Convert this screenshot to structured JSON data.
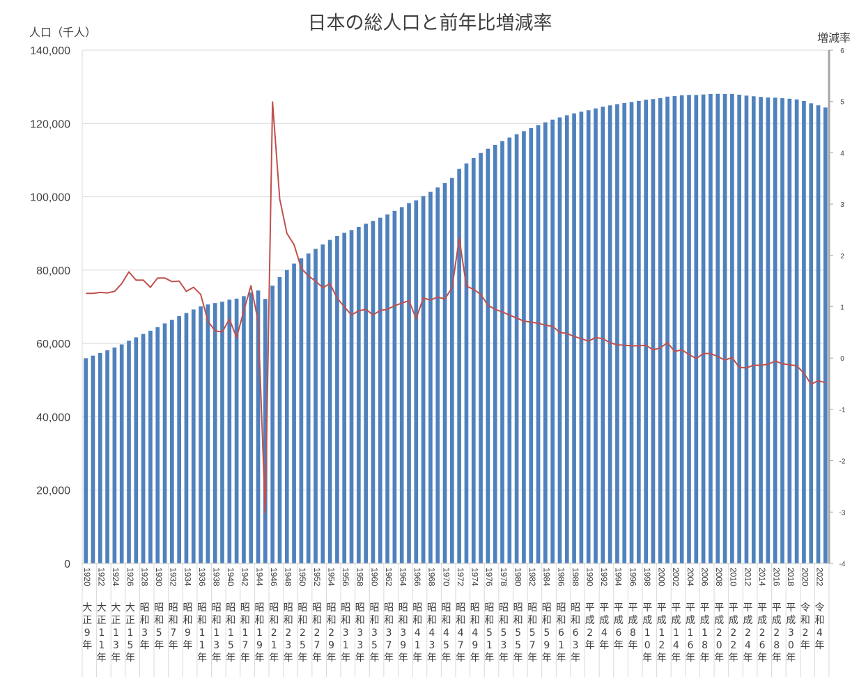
{
  "chart_data": {
    "type": "bar",
    "title": "日本の総人口と前年比増減率",
    "ylabel": "人口（千人）",
    "y2label": "増減率",
    "ylim": [
      0,
      140000
    ],
    "y_ticks": [
      "140,000",
      "120,000",
      "100,000",
      "80,000",
      "60,000",
      "40,000",
      "20,000",
      "0"
    ],
    "y2lim": [
      -4,
      6
    ],
    "y2_ticks": [
      "6",
      "5",
      "4",
      "3",
      "2",
      "1",
      "0",
      "-1",
      "-2",
      "-3",
      "-4"
    ],
    "grid": true,
    "colors": {
      "bars": "#4f81bd",
      "line": "#c0504d",
      "grid": "#d9d9d9",
      "right_axis": "#a6a6a6"
    },
    "x": [
      1920,
      1921,
      1922,
      1923,
      1924,
      1925,
      1926,
      1927,
      1928,
      1929,
      1930,
      1931,
      1932,
      1933,
      1934,
      1935,
      1936,
      1937,
      1938,
      1939,
      1940,
      1941,
      1942,
      1943,
      1944,
      1945,
      1946,
      1947,
      1948,
      1949,
      1950,
      1951,
      1952,
      1953,
      1954,
      1955,
      1956,
      1957,
      1958,
      1959,
      1960,
      1961,
      1962,
      1963,
      1964,
      1965,
      1966,
      1967,
      1968,
      1969,
      1970,
      1971,
      1972,
      1973,
      1974,
      1975,
      1976,
      1977,
      1978,
      1979,
      1980,
      1981,
      1982,
      1983,
      1984,
      1985,
      1986,
      1987,
      1988,
      1989,
      1990,
      1991,
      1992,
      1993,
      1994,
      1995,
      1996,
      1997,
      1998,
      1999,
      2000,
      2001,
      2002,
      2003,
      2004,
      2005,
      2006,
      2007,
      2008,
      2009,
      2010,
      2011,
      2012,
      2013,
      2014,
      2015,
      2016,
      2017,
      2018,
      2019,
      2020,
      2021,
      2022,
      2023
    ],
    "x_tick_labels": [
      "1920",
      "1922",
      "1924",
      "1926",
      "1928",
      "1930",
      "1932",
      "1934",
      "1936",
      "1938",
      "1940",
      "1942",
      "1944",
      "1946",
      "1948",
      "1950",
      "1952",
      "1954",
      "1956",
      "1958",
      "1960",
      "1962",
      "1964",
      "1966",
      "1968",
      "1970",
      "1972",
      "1974",
      "1976",
      "1978",
      "1980",
      "1982",
      "1984",
      "1986",
      "1988",
      "1990",
      "1992",
      "1994",
      "1996",
      "1998",
      "2000",
      "2002",
      "2004",
      "2006",
      "2008",
      "2010",
      "2012",
      "2014",
      "2016",
      "2018",
      "2020",
      "2022"
    ],
    "era_labels": [
      "大正9年",
      "大正11年",
      "大正13年",
      "大正15年",
      "昭和3年",
      "昭和5年",
      "昭和7年",
      "昭和9年",
      "昭和11年",
      "昭和13年",
      "昭和15年",
      "昭和17年",
      "昭和19年",
      "昭和21年",
      "昭和23年",
      "昭和25年",
      "昭和27年",
      "昭和29年",
      "昭和31年",
      "昭和33年",
      "昭和35年",
      "昭和37年",
      "昭和39年",
      "昭和41年",
      "昭和43年",
      "昭和45年",
      "昭和47年",
      "昭和49年",
      "昭和51年",
      "昭和53年",
      "昭和55年",
      "昭和57年",
      "昭和59年",
      "昭和61年",
      "昭和63年",
      "平成2年",
      "平成4年",
      "平成6年",
      "平成8年",
      "平成10年",
      "平成12年",
      "平成14年",
      "平成16年",
      "平成18年",
      "平成20年",
      "平成22年",
      "平成24年",
      "平成26年",
      "平成28年",
      "平成30年",
      "令和2年",
      "令和4年"
    ],
    "series": [
      {
        "axis": "left",
        "type": "bar",
        "values": [
          55963,
          56666,
          57390,
          58119,
          58876,
          59737,
          60741,
          61659,
          62595,
          63461,
          64450,
          65457,
          66434,
          67432,
          68309,
          69254,
          70114,
          70630,
          71013,
          71380,
          71933,
          72218,
          72880,
          73903,
          74433,
          72147,
          75750,
          78101,
          80002,
          81773,
          83200,
          84541,
          85808,
          86981,
          88239,
          89276,
          90172,
          90928,
          91767,
          92641,
          93419,
          94287,
          95181,
          96156,
          97182,
          98275,
          99036,
          100196,
          101331,
          102536,
          103720,
          105145,
          107595,
          109104,
          110573,
          111940,
          113094,
          114165,
          115190,
          116155,
          117060,
          117902,
          118728,
          119536,
          120305,
          121049,
          121660,
          122239,
          122745,
          123205,
          123611,
          124101,
          124567,
          124938,
          125265,
          125570,
          125859,
          126157,
          126472,
          126667,
          126926,
          127316,
          127486,
          127694,
          127787,
          127768,
          127901,
          128033,
          128084,
          128032,
          128057,
          127834,
          127593,
          127414,
          127237,
          127095,
          127042,
          126919,
          126749,
          126555,
          126146,
          125502,
          124947,
          124352
        ]
      },
      {
        "axis": "right",
        "type": "line",
        "values": [
          1.26,
          1.26,
          1.28,
          1.27,
          1.3,
          1.45,
          1.68,
          1.52,
          1.52,
          1.38,
          1.56,
          1.56,
          1.49,
          1.5,
          1.3,
          1.38,
          1.24,
          0.72,
          0.53,
          0.51,
          0.76,
          0.4,
          0.92,
          1.41,
          0.72,
          -3.02,
          4.99,
          3.1,
          2.43,
          2.21,
          1.75,
          1.6,
          1.5,
          1.37,
          1.45,
          1.17,
          1.0,
          0.84,
          0.92,
          0.95,
          0.84,
          0.93,
          0.95,
          1.02,
          1.07,
          1.12,
          0.77,
          1.17,
          1.13,
          1.19,
          1.15,
          1.37,
          2.33,
          1.4,
          1.34,
          1.24,
          1.03,
          0.95,
          0.9,
          0.84,
          0.78,
          0.72,
          0.7,
          0.68,
          0.64,
          0.62,
          0.5,
          0.48,
          0.42,
          0.38,
          0.33,
          0.4,
          0.38,
          0.3,
          0.26,
          0.25,
          0.24,
          0.24,
          0.25,
          0.16,
          0.2,
          0.3,
          0.13,
          0.16,
          0.07,
          -0.01,
          0.09,
          0.09,
          0.03,
          -0.04,
          0.01,
          -0.18,
          -0.19,
          -0.14,
          -0.14,
          -0.12,
          -0.06,
          -0.11,
          -0.13,
          -0.15,
          -0.29,
          -0.51,
          -0.44,
          -0.48
        ]
      }
    ]
  }
}
